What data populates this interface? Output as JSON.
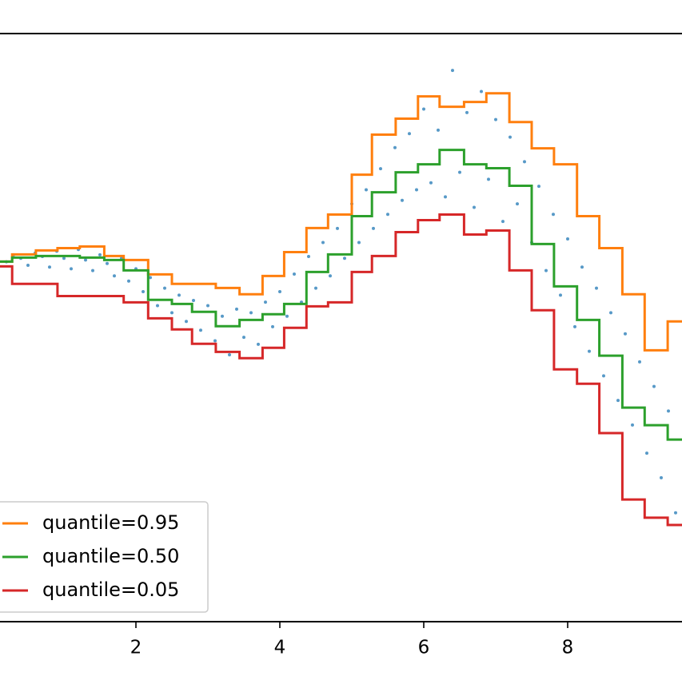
{
  "chart_data": {
    "type": "scatter",
    "xlim": [
      0,
      10
    ],
    "ylim": [
      -20.6,
      12.9
    ],
    "xticks": [
      2,
      4,
      6,
      8
    ],
    "legend": "lower left",
    "scatter": {
      "color": "#1f77b4",
      "x": [
        0.2,
        0.3,
        0.4,
        0.5,
        0.6,
        0.7,
        0.8,
        0.9,
        1.0,
        1.1,
        1.2,
        1.3,
        1.4,
        1.5,
        1.6,
        1.7,
        1.8,
        1.9,
        2.0,
        2.1,
        2.2,
        2.3,
        2.4,
        2.5,
        2.6,
        2.7,
        2.8,
        2.9,
        3.0,
        3.1,
        3.2,
        3.3,
        3.4,
        3.5,
        3.6,
        3.7,
        3.8,
        3.9,
        4.0,
        4.1,
        4.2,
        4.3,
        4.4,
        4.5,
        4.6,
        4.7,
        4.8,
        4.9,
        5.0,
        5.1,
        5.2,
        5.3,
        5.4,
        5.5,
        5.6,
        5.7,
        5.8,
        5.9,
        6.0,
        6.1,
        6.2,
        6.3,
        6.4,
        6.5,
        6.6,
        6.7,
        6.8,
        6.9,
        7.0,
        7.1,
        7.2,
        7.3,
        7.4,
        7.5,
        7.6,
        7.7,
        7.8,
        7.9,
        8.0,
        8.1,
        8.2,
        8.3,
        8.4,
        8.5,
        8.6,
        8.7,
        8.8,
        8.9,
        9.0,
        9.1,
        9.2,
        9.3,
        9.4,
        9.5
      ],
      "values": [
        -0.1,
        0.3,
        0.1,
        -0.3,
        0.4,
        0.2,
        -0.4,
        0.5,
        0.1,
        -0.5,
        0.6,
        0.0,
        -0.6,
        0.3,
        -0.2,
        -0.9,
        0.1,
        -1.2,
        -0.5,
        -1.8,
        -1.0,
        -2.6,
        -1.6,
        -3.0,
        -2.0,
        -3.5,
        -2.3,
        -4.0,
        -2.6,
        -4.6,
        -3.2,
        -5.4,
        -2.8,
        -4.4,
        -3.0,
        -4.8,
        -2.4,
        -3.8,
        -1.8,
        -3.2,
        -0.8,
        -2.4,
        0.2,
        -1.6,
        1.0,
        -0.9,
        1.8,
        0.1,
        3.2,
        1.0,
        4.0,
        1.8,
        5.2,
        2.6,
        6.4,
        3.4,
        7.2,
        4.0,
        8.6,
        4.4,
        7.4,
        3.6,
        10.8,
        5.0,
        8.4,
        3.0,
        9.6,
        4.6,
        8.0,
        2.2,
        7.0,
        3.2,
        5.6,
        1.0,
        4.2,
        -0.6,
        2.6,
        -2.0,
        1.2,
        -3.8,
        -0.4,
        -5.2,
        -1.6,
        -6.6,
        -3.0,
        -8.0,
        -4.2,
        -9.4,
        -5.8,
        -11.0,
        -7.2,
        -12.4,
        -8.6,
        -14.4
      ]
    },
    "series": [
      {
        "name": "quantile=0.95",
        "color": "#ff7f0e",
        "x": [
          0,
          0.28,
          0.61,
          0.91,
          1.22,
          1.56,
          1.83,
          2.17,
          2.5,
          2.78,
          3.11,
          3.44,
          3.76,
          4.06,
          4.37,
          4.67,
          5.0,
          5.28,
          5.61,
          5.92,
          6.22,
          6.56,
          6.87,
          7.19,
          7.5,
          7.81,
          8.13,
          8.44,
          8.76,
          9.07,
          9.39
        ],
        "values": [
          -0.09,
          0.32,
          0.55,
          0.68,
          0.77,
          0.23,
          0,
          -0.82,
          -1.36,
          -1.36,
          -1.59,
          -1.95,
          -0.91,
          0.45,
          1.82,
          2.59,
          4.86,
          7.14,
          8.05,
          9.32,
          8.73,
          9.0,
          9.5,
          7.86,
          6.36,
          5.45,
          2.5,
          0.68,
          -1.95,
          -5.14,
          -3.5
        ]
      },
      {
        "name": "quantile=0.50",
        "color": "#2ca02c",
        "x": [
          0,
          0.28,
          0.61,
          0.91,
          1.22,
          1.56,
          1.83,
          2.17,
          2.5,
          2.78,
          3.11,
          3.44,
          3.76,
          4.06,
          4.37,
          4.67,
          5.0,
          5.28,
          5.61,
          5.92,
          6.22,
          6.56,
          6.87,
          7.19,
          7.5,
          7.81,
          8.13,
          8.44,
          8.76,
          9.07,
          9.39
        ],
        "values": [
          -0.09,
          0.14,
          0.23,
          0.23,
          0.14,
          0,
          -0.59,
          -2.27,
          -2.5,
          -2.95,
          -3.77,
          -3.41,
          -3.09,
          -2.5,
          -0.68,
          0.32,
          2.5,
          3.86,
          5.0,
          5.45,
          6.27,
          5.45,
          5.23,
          4.23,
          0.91,
          -1.5,
          -3.41,
          -5.45,
          -8.41,
          -9.41,
          -10.23
        ]
      },
      {
        "name": "quantile=0.05",
        "color": "#d62728",
        "x": [
          0,
          0.28,
          0.61,
          0.91,
          1.22,
          1.56,
          1.83,
          2.17,
          2.5,
          2.78,
          3.11,
          3.44,
          3.76,
          4.06,
          4.37,
          4.67,
          5.0,
          5.28,
          5.61,
          5.92,
          6.22,
          6.56,
          6.87,
          7.19,
          7.5,
          7.81,
          8.13,
          8.44,
          8.76,
          9.07,
          9.39
        ],
        "values": [
          -0.36,
          -1.36,
          -1.36,
          -2.05,
          -2.05,
          -2.05,
          -2.41,
          -3.32,
          -3.95,
          -4.77,
          -5.23,
          -5.59,
          -5,
          -3.86,
          -2.64,
          -2.41,
          -0.68,
          0.23,
          1.59,
          2.27,
          2.59,
          1.45,
          1.68,
          -0.59,
          -2.86,
          -6.23,
          -7.05,
          -9.86,
          -13.64,
          -14.68,
          -15.09
        ]
      }
    ]
  }
}
